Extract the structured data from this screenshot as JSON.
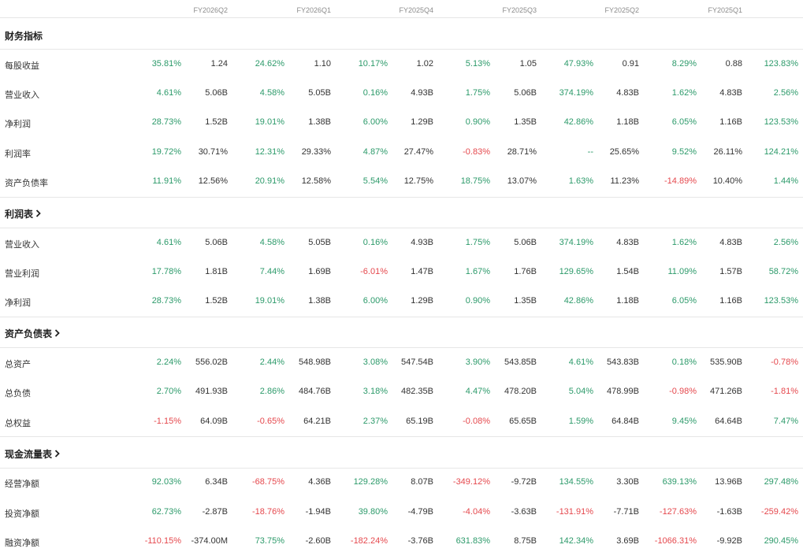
{
  "periods": [
    "FY2026Q2",
    "FY2026Q1",
    "FY2025Q4",
    "FY2025Q3",
    "FY2025Q2",
    "FY2025Q1"
  ],
  "colors": {
    "up": "#2c9a6a",
    "down": "#e5484d",
    "text": "#333333",
    "divider": "#e6e6e6"
  },
  "sections": [
    {
      "title": "财务指标",
      "rows": [
        {
          "label": "每股收益",
          "cells": [
            [
              "35.81%",
              "1.24"
            ],
            [
              "24.62%",
              "1.10"
            ],
            [
              "10.17%",
              "1.02"
            ],
            [
              "5.13%",
              "1.05"
            ],
            [
              "47.93%",
              "0.91"
            ],
            [
              "8.29%",
              "0.88"
            ],
            [
              "123.83%",
              ""
            ]
          ]
        },
        {
          "label": "营业收入",
          "cells": [
            [
              "4.61%",
              "5.06B"
            ],
            [
              "4.58%",
              "5.05B"
            ],
            [
              "0.16%",
              "4.93B"
            ],
            [
              "1.75%",
              "5.06B"
            ],
            [
              "374.19%",
              "4.83B"
            ],
            [
              "1.62%",
              "4.83B"
            ],
            [
              "2.56%",
              ""
            ]
          ]
        },
        {
          "label": "净利润",
          "cells": [
            [
              "28.73%",
              "1.52B"
            ],
            [
              "19.01%",
              "1.38B"
            ],
            [
              "6.00%",
              "1.29B"
            ],
            [
              "0.90%",
              "1.35B"
            ],
            [
              "42.86%",
              "1.18B"
            ],
            [
              "6.05%",
              "1.16B"
            ],
            [
              "123.53%",
              ""
            ]
          ]
        },
        {
          "label": "利润率",
          "cells": [
            [
              "19.72%",
              "30.71%"
            ],
            [
              "12.31%",
              "29.33%"
            ],
            [
              "4.87%",
              "27.47%"
            ],
            [
              "-0.83%",
              "28.71%"
            ],
            [
              "--",
              "25.65%"
            ],
            [
              "9.52%",
              "26.11%"
            ],
            [
              "124.21%",
              ""
            ]
          ]
        },
        {
          "label": "资产负债率",
          "cells": [
            [
              "11.91%",
              "12.56%"
            ],
            [
              "20.91%",
              "12.58%"
            ],
            [
              "5.54%",
              "12.75%"
            ],
            [
              "18.75%",
              "13.07%"
            ],
            [
              "1.63%",
              "11.23%"
            ],
            [
              "-14.89%",
              "10.40%"
            ],
            [
              "1.44%",
              ""
            ]
          ]
        }
      ]
    },
    {
      "title": "利润表",
      "rows": [
        {
          "label": "营业收入",
          "cells": [
            [
              "4.61%",
              "5.06B"
            ],
            [
              "4.58%",
              "5.05B"
            ],
            [
              "0.16%",
              "4.93B"
            ],
            [
              "1.75%",
              "5.06B"
            ],
            [
              "374.19%",
              "4.83B"
            ],
            [
              "1.62%",
              "4.83B"
            ],
            [
              "2.56%",
              ""
            ]
          ]
        },
        {
          "label": "营业利润",
          "cells": [
            [
              "17.78%",
              "1.81B"
            ],
            [
              "7.44%",
              "1.69B"
            ],
            [
              "-6.01%",
              "1.47B"
            ],
            [
              "1.67%",
              "1.76B"
            ],
            [
              "129.65%",
              "1.54B"
            ],
            [
              "11.09%",
              "1.57B"
            ],
            [
              "58.72%",
              ""
            ]
          ]
        },
        {
          "label": "净利润",
          "cells": [
            [
              "28.73%",
              "1.52B"
            ],
            [
              "19.01%",
              "1.38B"
            ],
            [
              "6.00%",
              "1.29B"
            ],
            [
              "0.90%",
              "1.35B"
            ],
            [
              "42.86%",
              "1.18B"
            ],
            [
              "6.05%",
              "1.16B"
            ],
            [
              "123.53%",
              ""
            ]
          ]
        }
      ]
    },
    {
      "title": "资产负债表",
      "rows": [
        {
          "label": "总资产",
          "cells": [
            [
              "2.24%",
              "556.02B"
            ],
            [
              "2.44%",
              "548.98B"
            ],
            [
              "3.08%",
              "547.54B"
            ],
            [
              "3.90%",
              "543.85B"
            ],
            [
              "4.61%",
              "543.83B"
            ],
            [
              "0.18%",
              "535.90B"
            ],
            [
              "-0.78%",
              ""
            ]
          ]
        },
        {
          "label": "总负债",
          "cells": [
            [
              "2.70%",
              "491.93B"
            ],
            [
              "2.86%",
              "484.76B"
            ],
            [
              "3.18%",
              "482.35B"
            ],
            [
              "4.47%",
              "478.20B"
            ],
            [
              "5.04%",
              "478.99B"
            ],
            [
              "-0.98%",
              "471.26B"
            ],
            [
              "-1.81%",
              ""
            ]
          ]
        },
        {
          "label": "总权益",
          "cells": [
            [
              "-1.15%",
              "64.09B"
            ],
            [
              "-0.65%",
              "64.21B"
            ],
            [
              "2.37%",
              "65.19B"
            ],
            [
              "-0.08%",
              "65.65B"
            ],
            [
              "1.59%",
              "64.84B"
            ],
            [
              "9.45%",
              "64.64B"
            ],
            [
              "7.47%",
              ""
            ]
          ]
        }
      ]
    },
    {
      "title": "现金流量表",
      "rows": [
        {
          "label": "经营净额",
          "cells": [
            [
              "92.03%",
              "6.34B"
            ],
            [
              "-68.75%",
              "4.36B"
            ],
            [
              "129.28%",
              "8.07B"
            ],
            [
              "-349.12%",
              "-9.72B"
            ],
            [
              "134.55%",
              "3.30B"
            ],
            [
              "639.13%",
              "13.96B"
            ],
            [
              "297.48%",
              ""
            ]
          ]
        },
        {
          "label": "投资净额",
          "cells": [
            [
              "62.73%",
              "-2.87B"
            ],
            [
              "-18.76%",
              "-1.94B"
            ],
            [
              "39.80%",
              "-4.79B"
            ],
            [
              "-4.04%",
              "-3.63B"
            ],
            [
              "-131.91%",
              "-7.71B"
            ],
            [
              "-127.63%",
              "-1.63B"
            ],
            [
              "-259.42%",
              ""
            ]
          ]
        },
        {
          "label": "融资净额",
          "cells": [
            [
              "-110.15%",
              "-374.00M"
            ],
            [
              "73.75%",
              "-2.60B"
            ],
            [
              "-182.24%",
              "-3.76B"
            ],
            [
              "631.83%",
              "8.75B"
            ],
            [
              "142.34%",
              "3.69B"
            ],
            [
              "-1066.31%",
              "-9.92B"
            ],
            [
              "290.45%",
              ""
            ]
          ]
        }
      ]
    }
  ]
}
